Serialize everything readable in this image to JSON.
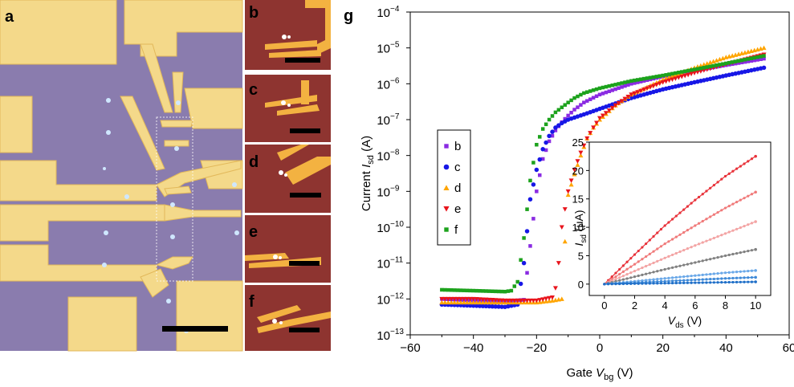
{
  "panel_labels": {
    "a": "a",
    "b": "b",
    "c": "c",
    "d": "d",
    "e": "e",
    "f": "f",
    "g": "g"
  },
  "colors": {
    "substrate": "#8a7cae",
    "gold": "#f4d98a",
    "gold_edge": "#e2b85a",
    "small_bg": "#8e3430",
    "small_gold": "#f3b241",
    "border": "#ffffff",
    "b": "#8a2be2",
    "c": "#1717e6",
    "d": "#ffa500",
    "e": "#e8141c",
    "f": "#1ca21c"
  },
  "chart_data": [
    {
      "type": "scatter",
      "title": "",
      "xlabel_prefix": "Gate ",
      "xlabel_var": "V",
      "xlabel_sub": "bg",
      "xlabel_unit": " (V)",
      "ylabel_prefix": "Current ",
      "ylabel_var": "I",
      "ylabel_sub": "sd",
      "ylabel_unit": " (A)",
      "y_scale": "log",
      "xlim": [
        -60,
        60
      ],
      "ylim_exponent": [
        -13,
        -4
      ],
      "x_ticks": [
        "−60",
        "−40",
        "−20",
        "0",
        "20",
        "40",
        "60"
      ],
      "y_ticks": [
        "10",
        "10",
        "10",
        "10",
        "10",
        "10",
        "10",
        "10",
        "10",
        "10"
      ],
      "y_tick_exponents": [
        "−13",
        "−12",
        "−11",
        "−10",
        "−9",
        "−8",
        "−7",
        "−6",
        "−5",
        "−4"
      ],
      "legend_position": "center-left",
      "series": [
        {
          "name": "b",
          "marker": "square",
          "color": "#8a2be2",
          "x": [
            -50,
            -40,
            -30,
            -24,
            -22,
            -20,
            -18,
            -16,
            -14,
            -12,
            -10,
            -8,
            -5,
            0,
            10,
            20,
            30,
            40,
            52
          ],
          "y": [
            1e-12,
            9e-13,
            8.5e-13,
            9.5e-13,
            3e-11,
            1e-09,
            8e-09,
            2.5e-08,
            5e-08,
            8.5e-08,
            1.3e-07,
            1.9e-07,
            3e-07,
            5e-07,
            1e-06,
            1.6e-06,
            2.3e-06,
            3.3e-06,
            5e-06
          ]
        },
        {
          "name": "c",
          "marker": "circle",
          "color": "#1717e6",
          "x": [
            -50,
            -40,
            -30,
            -26,
            -24,
            -22,
            -20,
            -18,
            -16,
            -14,
            -12,
            -10,
            -5,
            0,
            10,
            20,
            30,
            40,
            52
          ],
          "y": [
            7e-13,
            6.5e-13,
            6e-13,
            7e-13,
            1e-11,
            6e-10,
            4e-09,
            1.5e-08,
            3.5e-08,
            6e-08,
            8e-08,
            1e-07,
            1.4e-07,
            2e-07,
            4e-07,
            7e-07,
            1.1e-06,
            1.7e-06,
            2.8e-06
          ]
        },
        {
          "name": "d",
          "marker": "triangle",
          "color": "#ffa500",
          "x": [
            -50,
            -40,
            -30,
            -20,
            -15,
            -12,
            -11,
            -10,
            -8,
            -6,
            -4,
            -2,
            0,
            5,
            10,
            20,
            30,
            40,
            52
          ],
          "y": [
            8e-13,
            8e-13,
            8e-13,
            8e-13,
            9e-13,
            1e-12,
            4e-11,
            8e-10,
            3e-09,
            1e-08,
            3e-08,
            6e-08,
            1e-07,
            2.5e-07,
            5e-07,
            1.3e-06,
            2.8e-06,
            5.5e-06,
            1e-05
          ]
        },
        {
          "name": "e",
          "marker": "triangle-down",
          "color": "#e8141c",
          "x": [
            -50,
            -40,
            -30,
            -20,
            -15,
            -14,
            -13,
            -12,
            -10,
            -8,
            -6,
            -4,
            -2,
            0,
            5,
            10,
            20,
            30,
            40,
            52
          ],
          "y": [
            1e-12,
            1e-12,
            9e-13,
            9e-13,
            1.1e-12,
            2e-12,
            1e-11,
            1e-10,
            1e-09,
            4e-09,
            1.2e-08,
            3e-08,
            6e-08,
            1.1e-07,
            2.5e-07,
            5e-07,
            1.1e-06,
            2e-06,
            3.5e-06,
            6.5e-06
          ]
        },
        {
          "name": "f",
          "marker": "square",
          "color": "#1ca21c",
          "x": [
            -50,
            -40,
            -30,
            -28,
            -26,
            -24,
            -22,
            -20,
            -18,
            -16,
            -14,
            -12,
            -10,
            -8,
            -5,
            0,
            10,
            20,
            30,
            40,
            52
          ],
          "y": [
            1.8e-12,
            1.7e-12,
            1.6e-12,
            1.7e-12,
            3e-12,
            5e-11,
            2e-09,
            2e-08,
            5.5e-08,
            1e-07,
            1.6e-07,
            2.2e-07,
            3e-07,
            4e-07,
            5.5e-07,
            7.5e-07,
            1.2e-06,
            1.7e-06,
            2.5e-06,
            3.7e-06,
            6e-06
          ]
        }
      ]
    },
    {
      "type": "line",
      "title": "",
      "xlabel_var": "V",
      "xlabel_sub": "ds",
      "xlabel_unit": " (V)",
      "ylabel_var": "I",
      "ylabel_sub": "sd",
      "ylabel_unit": " (μA)",
      "xlim": [
        -1,
        11
      ],
      "ylim": [
        -2,
        25
      ],
      "x_ticks": [
        "0",
        "2",
        "4",
        "6",
        "8",
        "10"
      ],
      "y_ticks": [
        "0",
        "5",
        "10",
        "15",
        "20",
        "25"
      ],
      "series": [
        {
          "color": "#e8323a",
          "x": [
            0,
            2,
            4,
            6,
            8,
            10
          ],
          "y": [
            0,
            5.2,
            10.3,
            14.8,
            19.0,
            22.5
          ]
        },
        {
          "color": "#f07a7a",
          "x": [
            0,
            2,
            4,
            6,
            8,
            10
          ],
          "y": [
            0,
            3.5,
            7.1,
            10.3,
            13.4,
            16.2
          ]
        },
        {
          "color": "#f3a4a4",
          "x": [
            0,
            2,
            4,
            6,
            8,
            10
          ],
          "y": [
            0,
            2.3,
            4.6,
            6.8,
            8.9,
            11.0
          ]
        },
        {
          "color": "#808080",
          "x": [
            0,
            2,
            4,
            6,
            8,
            10
          ],
          "y": [
            0,
            1.3,
            2.6,
            3.8,
            5.0,
            6.1
          ]
        },
        {
          "color": "#6aa8e8",
          "x": [
            0,
            2,
            4,
            6,
            8,
            10
          ],
          "y": [
            0,
            0.5,
            1.0,
            1.5,
            2.0,
            2.4
          ]
        },
        {
          "color": "#3f8ad8",
          "x": [
            0,
            2,
            4,
            6,
            8,
            10
          ],
          "y": [
            0,
            0.25,
            0.5,
            0.75,
            1.0,
            1.2
          ]
        },
        {
          "color": "#1f6fc8",
          "x": [
            0,
            2,
            4,
            6,
            8,
            10
          ],
          "y": [
            0,
            0.08,
            0.16,
            0.24,
            0.32,
            0.4
          ]
        }
      ]
    }
  ]
}
